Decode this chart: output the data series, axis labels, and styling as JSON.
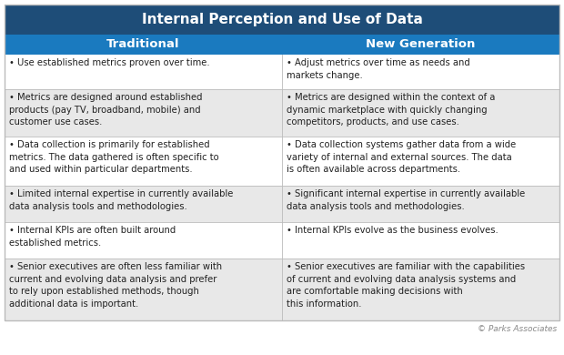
{
  "title": "Internal Perception and Use of Data",
  "col1_header": "Traditional",
  "col2_header": "New Generation",
  "title_bg": "#1e4d78",
  "header_bg": "#1a7abf",
  "row_bg_odd": "#ffffff",
  "row_bg_even": "#e8e8e8",
  "title_color": "#ffffff",
  "header_color": "#ffffff",
  "text_color": "#222222",
  "border_color": "#bbbbbb",
  "watermark": "© Parks Associates",
  "title_fontsize": 11,
  "header_fontsize": 9.5,
  "body_fontsize": 7.2,
  "rows": [
    [
      "Use established metrics proven over time.",
      "Adjust metrics over time as needs and\nmarkets change."
    ],
    [
      "Metrics are designed around established\nproducts (pay TV, broadband, mobile) and\ncustomer use cases.",
      "Metrics are designed within the context of a\ndynamic marketplace with quickly changing\ncompetitors, products, and use cases."
    ],
    [
      "Data collection is primarily for established\nmetrics. The data gathered is often specific to\nand used within particular departments.",
      "Data collection systems gather data from a wide\nvariety of internal and external sources. The data\nis often available across departments."
    ],
    [
      "Limited internal expertise in currently available\ndata analysis tools and methodologies.",
      "Significant internal expertise in currently available\ndata analysis tools and methodologies."
    ],
    [
      "Internal KPIs are often built around\nestablished metrics.",
      "Internal KPIs evolve as the business evolves."
    ],
    [
      "Senior executives are often less familiar with\ncurrent and evolving data analysis and prefer\nto rely upon established methods, though\nadditional data is important.",
      "Senior executives are familiar with the capabilities\nof current and evolving data analysis systems and\nare comfortable making decisions with\nthis information."
    ]
  ]
}
